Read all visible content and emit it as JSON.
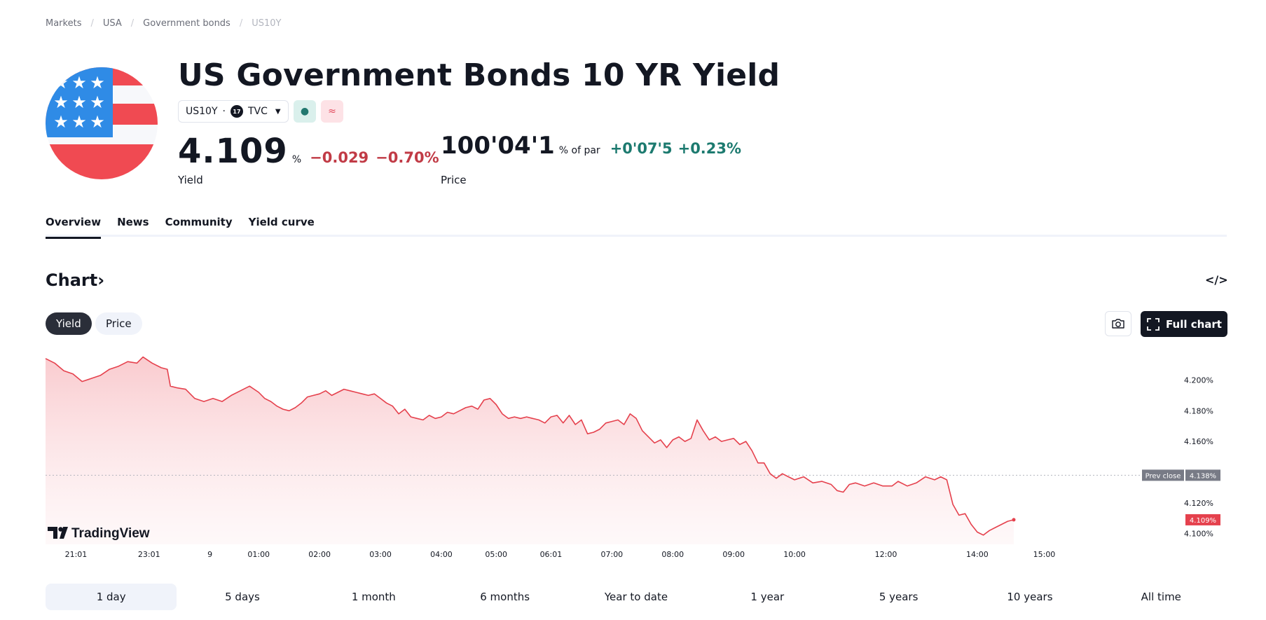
{
  "breadcrumb": [
    "Markets",
    "USA",
    "Government bonds",
    "US10Y"
  ],
  "header": {
    "title": "US Government Bonds 10 YR Yield",
    "symbol": "US10Y",
    "dot": "·",
    "exchange": "TVC",
    "exchange_logo": "17",
    "market_status_icon": "●",
    "delayed_icon": "≈"
  },
  "yield_quote": {
    "value": "4.109",
    "unit": "%",
    "change": "−0.029",
    "change_pct": "−0.70%",
    "label": "Yield"
  },
  "price_quote": {
    "value": "100'04'1",
    "unit": "% of par",
    "change": "+0'07'5",
    "change_pct": "+0.23%",
    "label": "Price"
  },
  "tabs": [
    "Overview",
    "News",
    "Community",
    "Yield curve"
  ],
  "chart_section": {
    "title": "Chart",
    "title_arrow": "›",
    "embed_icon": "</>",
    "toggles": [
      "Yield",
      "Price"
    ],
    "full_chart_label": "Full chart",
    "watermark": "TradingView"
  },
  "colors": {
    "line": "#e5414d",
    "fill_top": "#f9c8cc",
    "positive": "#1c7a6f",
    "negative": "#c13b46",
    "prev_close_bg": "#787b86",
    "last_bg": "#e5414d"
  },
  "chart_data": {
    "type": "area",
    "title": "",
    "xlabel": "",
    "ylabel": "",
    "ylim": [
      4.093,
      4.218
    ],
    "yticks": [
      4.1,
      4.12,
      4.16,
      4.18,
      4.2
    ],
    "ytick_labels": [
      "4.100%",
      "4.120%",
      "4.160%",
      "4.180%",
      "4.200%"
    ],
    "x_ticks": [
      {
        "label": "21:01",
        "t": 0.5
      },
      {
        "label": "23:01",
        "t": 1.7
      },
      {
        "label": "9",
        "t": 2.7
      },
      {
        "label": "01:00",
        "t": 3.5
      },
      {
        "label": "02:00",
        "t": 4.5
      },
      {
        "label": "03:00",
        "t": 5.5
      },
      {
        "label": "04:00",
        "t": 6.5
      },
      {
        "label": "05:00",
        "t": 7.4
      },
      {
        "label": "06:01",
        "t": 8.3
      },
      {
        "label": "07:00",
        "t": 9.3
      },
      {
        "label": "08:00",
        "t": 10.3
      },
      {
        "label": "09:00",
        "t": 11.3
      },
      {
        "label": "10:00",
        "t": 12.3
      },
      {
        "label": "12:00",
        "t": 13.8
      },
      {
        "label": "14:00",
        "t": 15.3
      },
      {
        "label": "15:00",
        "t": 16.4
      }
    ],
    "x_range": [
      0,
      17.2
    ],
    "series": [
      {
        "points": [
          [
            0,
            4.214
          ],
          [
            0.15,
            4.211
          ],
          [
            0.3,
            4.206
          ],
          [
            0.45,
            4.204
          ],
          [
            0.6,
            4.199
          ],
          [
            0.75,
            4.201
          ],
          [
            0.9,
            4.203
          ],
          [
            1.05,
            4.207
          ],
          [
            1.2,
            4.209
          ],
          [
            1.35,
            4.212
          ],
          [
            1.5,
            4.211
          ],
          [
            1.6,
            4.215
          ],
          [
            1.75,
            4.211
          ],
          [
            1.9,
            4.208
          ],
          [
            2.0,
            4.207
          ],
          [
            2.05,
            4.196
          ],
          [
            2.15,
            4.195
          ],
          [
            2.3,
            4.194
          ],
          [
            2.45,
            4.188
          ],
          [
            2.6,
            4.186
          ],
          [
            2.75,
            4.188
          ],
          [
            2.9,
            4.186
          ],
          [
            3.05,
            4.19
          ],
          [
            3.2,
            4.193
          ],
          [
            3.35,
            4.196
          ],
          [
            3.5,
            4.192
          ],
          [
            3.6,
            4.188
          ],
          [
            3.7,
            4.186
          ],
          [
            3.8,
            4.183
          ],
          [
            3.9,
            4.181
          ],
          [
            4.0,
            4.18
          ],
          [
            4.1,
            4.182
          ],
          [
            4.2,
            4.185
          ],
          [
            4.3,
            4.189
          ],
          [
            4.4,
            4.19
          ],
          [
            4.5,
            4.191
          ],
          [
            4.6,
            4.193
          ],
          [
            4.7,
            4.19
          ],
          [
            4.8,
            4.192
          ],
          [
            4.9,
            4.194
          ],
          [
            5.0,
            4.193
          ],
          [
            5.1,
            4.192
          ],
          [
            5.2,
            4.191
          ],
          [
            5.3,
            4.19
          ],
          [
            5.4,
            4.191
          ],
          [
            5.5,
            4.188
          ],
          [
            5.6,
            4.185
          ],
          [
            5.7,
            4.183
          ],
          [
            5.8,
            4.178
          ],
          [
            5.9,
            4.181
          ],
          [
            6.0,
            4.176
          ],
          [
            6.1,
            4.175
          ],
          [
            6.2,
            4.174
          ],
          [
            6.3,
            4.177
          ],
          [
            6.4,
            4.175
          ],
          [
            6.5,
            4.176
          ],
          [
            6.6,
            4.179
          ],
          [
            6.7,
            4.178
          ],
          [
            6.8,
            4.18
          ],
          [
            6.9,
            4.182
          ],
          [
            7.0,
            4.183
          ],
          [
            7.1,
            4.181
          ],
          [
            7.2,
            4.187
          ],
          [
            7.3,
            4.188
          ],
          [
            7.4,
            4.184
          ],
          [
            7.5,
            4.178
          ],
          [
            7.6,
            4.175
          ],
          [
            7.7,
            4.176
          ],
          [
            7.8,
            4.175
          ],
          [
            7.9,
            4.176
          ],
          [
            8.0,
            4.175
          ],
          [
            8.1,
            4.174
          ],
          [
            8.2,
            4.172
          ],
          [
            8.3,
            4.176
          ],
          [
            8.4,
            4.177
          ],
          [
            8.5,
            4.172
          ],
          [
            8.6,
            4.177
          ],
          [
            8.7,
            4.171
          ],
          [
            8.8,
            4.174
          ],
          [
            8.9,
            4.165
          ],
          [
            9.0,
            4.166
          ],
          [
            9.1,
            4.168
          ],
          [
            9.2,
            4.172
          ],
          [
            9.3,
            4.173
          ],
          [
            9.4,
            4.174
          ],
          [
            9.5,
            4.171
          ],
          [
            9.6,
            4.178
          ],
          [
            9.7,
            4.175
          ],
          [
            9.8,
            4.167
          ],
          [
            9.9,
            4.163
          ],
          [
            10.0,
            4.159
          ],
          [
            10.1,
            4.161
          ],
          [
            10.2,
            4.156
          ],
          [
            10.3,
            4.161
          ],
          [
            10.4,
            4.163
          ],
          [
            10.5,
            4.16
          ],
          [
            10.6,
            4.162
          ],
          [
            10.7,
            4.174
          ],
          [
            10.8,
            4.167
          ],
          [
            10.9,
            4.161
          ],
          [
            11.0,
            4.163
          ],
          [
            11.1,
            4.16
          ],
          [
            11.2,
            4.161
          ],
          [
            11.3,
            4.162
          ],
          [
            11.4,
            4.158
          ],
          [
            11.5,
            4.16
          ],
          [
            11.6,
            4.154
          ],
          [
            11.7,
            4.146
          ],
          [
            11.8,
            4.146
          ],
          [
            11.9,
            4.139
          ],
          [
            12.0,
            4.136
          ],
          [
            12.1,
            4.139
          ],
          [
            12.2,
            4.137
          ],
          [
            12.3,
            4.135
          ],
          [
            12.45,
            4.137
          ],
          [
            12.6,
            4.133
          ],
          [
            12.75,
            4.134
          ],
          [
            12.9,
            4.132
          ],
          [
            13.0,
            4.128
          ],
          [
            13.1,
            4.127
          ],
          [
            13.2,
            4.132
          ],
          [
            13.3,
            4.133
          ],
          [
            13.45,
            4.131
          ],
          [
            13.6,
            4.133
          ],
          [
            13.75,
            4.131
          ],
          [
            13.9,
            4.131
          ],
          [
            14.0,
            4.134
          ],
          [
            14.15,
            4.131
          ],
          [
            14.3,
            4.133
          ],
          [
            14.45,
            4.137
          ],
          [
            14.6,
            4.135
          ],
          [
            14.7,
            4.137
          ],
          [
            14.8,
            4.135
          ],
          [
            14.9,
            4.119
          ],
          [
            15.0,
            4.112
          ],
          [
            15.1,
            4.113
          ],
          [
            15.2,
            4.106
          ],
          [
            15.3,
            4.101
          ],
          [
            15.4,
            4.099
          ],
          [
            15.5,
            4.102
          ],
          [
            15.6,
            4.104
          ],
          [
            15.7,
            4.106
          ],
          [
            15.8,
            4.108
          ],
          [
            15.9,
            4.109
          ]
        ]
      }
    ],
    "prev_close": {
      "label": "Prev close",
      "value": "4.138%",
      "y": 4.138
    },
    "last_value": {
      "value": "4.109%",
      "y": 4.109
    }
  },
  "ranges": [
    "1 day",
    "5 days",
    "1 month",
    "6 months",
    "Year to date",
    "1 year",
    "5 years",
    "10 years",
    "All time"
  ],
  "active_range": "1 day"
}
